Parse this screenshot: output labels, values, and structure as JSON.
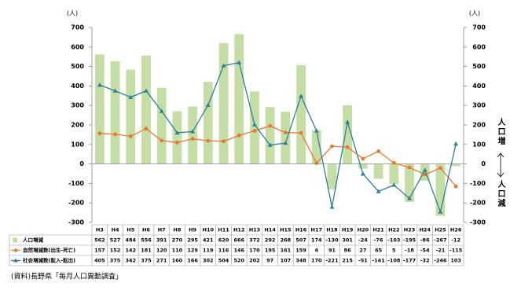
{
  "chart_data": {
    "type": "bar",
    "y_unit": "(人)",
    "y2_unit": "(人)",
    "categories": [
      "H3",
      "H4",
      "H5",
      "H6",
      "H7",
      "H8",
      "H9",
      "H10",
      "H11",
      "H12",
      "H13",
      "H14",
      "H15",
      "H16",
      "H17",
      "H18",
      "H19",
      "H20",
      "H21",
      "H22",
      "H23",
      "H24",
      "H25",
      "H26"
    ],
    "series": [
      {
        "name": "人口増減",
        "type": "bar",
        "color": "#c5dea6",
        "values": [
          562,
          527,
          484,
          556,
          391,
          270,
          295,
          421,
          620,
          666,
          372,
          292,
          268,
          507,
          174,
          -130,
          301,
          -24,
          -76,
          -103,
          -195,
          -86,
          -267,
          -12
        ]
      },
      {
        "name": "自然増減数(出生-死亡)",
        "type": "line",
        "marker": "circle",
        "color": "#e8792c",
        "values": [
          157,
          152,
          142,
          181,
          120,
          110,
          129,
          119,
          116,
          146,
          170,
          195,
          161,
          159,
          4,
          91,
          86,
          27,
          65,
          5,
          -18,
          -54,
          -21,
          -115
        ]
      },
      {
        "name": "社会増減数(転入-転出)",
        "type": "line",
        "marker": "triangle",
        "color": "#2f7f9c",
        "values": [
          405,
          375,
          342,
          375,
          271,
          160,
          166,
          302,
          504,
          520,
          202,
          97,
          107,
          348,
          170,
          -221,
          215,
          -51,
          -141,
          -108,
          -177,
          -32,
          -246,
          103
        ]
      }
    ],
    "ylim": [
      -300,
      700
    ],
    "yticks": [
      -300,
      -200,
      -100,
      0,
      100,
      200,
      300,
      400,
      500,
      600,
      700
    ],
    "y2lim": [
      -300,
      700
    ],
    "y2ticks": [
      -300,
      -200,
      -100,
      0,
      100,
      200,
      300,
      400,
      500,
      600,
      700
    ],
    "annotations": [
      "人口増",
      "人口減"
    ],
    "source": "(資料)長野県「毎月人口異動調査」"
  }
}
